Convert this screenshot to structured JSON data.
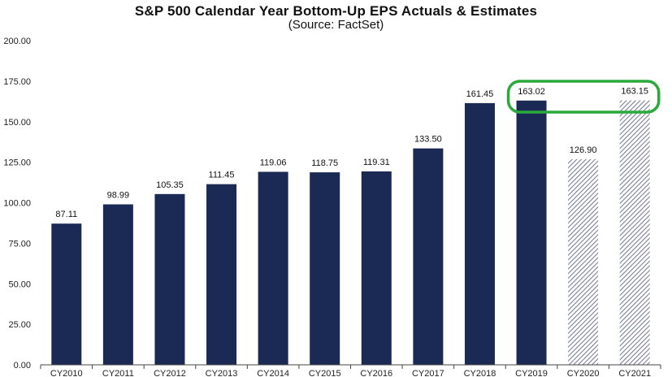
{
  "chart_data": {
    "type": "bar",
    "title": "S&P 500 Calendar Year Bottom-Up EPS Actuals & Estimates",
    "subtitle": "(Source: FactSet)",
    "categories": [
      "CY2010",
      "CY2011",
      "CY2012",
      "CY2013",
      "CY2014",
      "CY2015",
      "CY2016",
      "CY2017",
      "CY2018",
      "CY2019",
      "CY2020",
      "CY2021"
    ],
    "values": [
      87.11,
      98.99,
      105.35,
      111.45,
      119.06,
      118.75,
      119.31,
      133.5,
      161.45,
      163.02,
      126.9,
      163.15
    ],
    "value_labels": [
      "87.11",
      "98.99",
      "105.35",
      "111.45",
      "119.06",
      "118.75",
      "119.31",
      "133.50",
      "161.45",
      "163.02",
      "126.90",
      "163.15"
    ],
    "bar_kind": [
      "actual",
      "actual",
      "actual",
      "actual",
      "actual",
      "actual",
      "actual",
      "actual",
      "actual",
      "actual",
      "estimate",
      "estimate"
    ],
    "ylim": [
      0,
      200
    ],
    "yticks": [
      0,
      25,
      50,
      75,
      100,
      125,
      150,
      175,
      200
    ],
    "ytick_labels": [
      "0.00",
      "25.00",
      "50.00",
      "75.00",
      "100.00",
      "125.00",
      "150.00",
      "175.00",
      "200.00"
    ],
    "xlabel": "",
    "ylabel": "",
    "grid": false,
    "colors": {
      "actual": "#1b2a55",
      "estimate_hatch": "#8a90a8",
      "highlight": "#2aaa3a"
    },
    "highlight_categories": [
      "CY2019",
      "CY2021"
    ]
  }
}
